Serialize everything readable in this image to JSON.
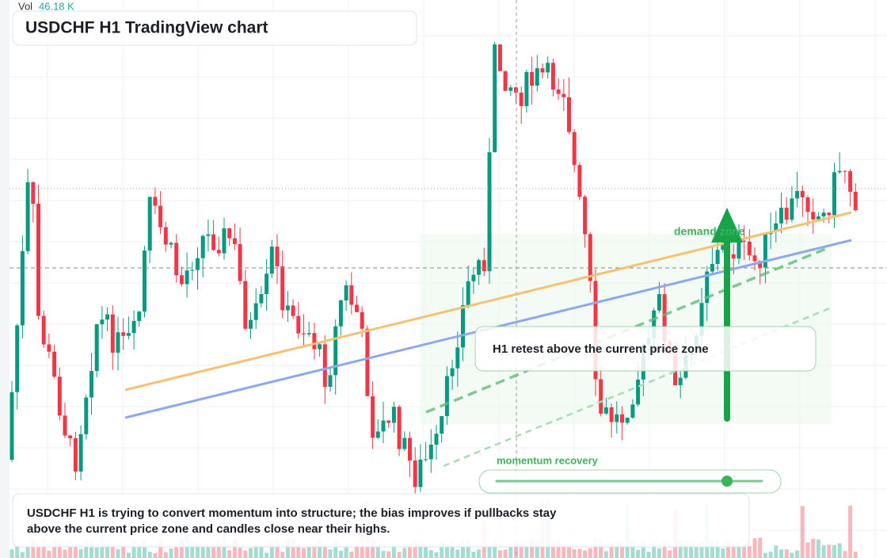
{
  "header": {
    "vol_label": "Vol",
    "vol_value": "46.18 K",
    "title": "USDCHF H1 TradingView chart"
  },
  "annotations": {
    "zone": "demand zone",
    "retest": "H1 retest above the current price zone",
    "momentum": "momentum recovery"
  },
  "summary": {
    "line1": "USDCHF H1 is trying to convert momentum into structure; the bias improves if pullbacks stay",
    "line2": "above the current price zone and candles close near their highs."
  }
}
